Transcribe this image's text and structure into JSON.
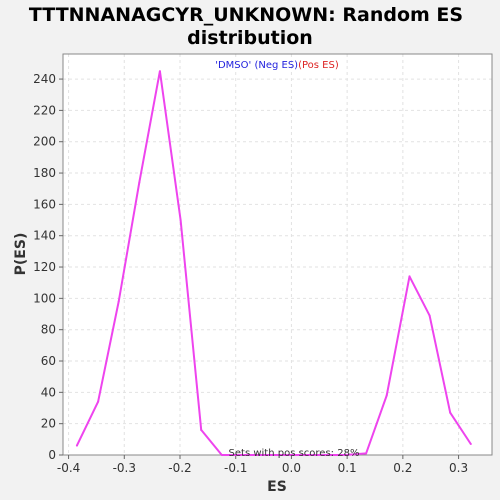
{
  "chart_data": {
    "type": "line",
    "title_line1": "TTTNNANAGCYR_UNKNOWN: Random ES",
    "title_line2": "distribution",
    "subtitle_neg": "'DMSO' (Neg ES)",
    "subtitle_pos": "(Pos ES)",
    "xlabel": "ES",
    "ylabel": "P(ES)",
    "annotation": "Sets with pos scores: 28%",
    "xlim": [
      -0.41,
      0.36
    ],
    "ylim": [
      0,
      256
    ],
    "x_ticks": [
      -0.4,
      -0.3,
      -0.2,
      -0.1,
      0.0,
      0.1,
      0.2,
      0.3
    ],
    "x_tick_labels": [
      "-0.4",
      "-0.3",
      "-0.2",
      "-0.1",
      "0.0",
      "0.1",
      "0.2",
      "0.3"
    ],
    "y_ticks": [
      0,
      20,
      40,
      60,
      80,
      100,
      120,
      140,
      160,
      180,
      200,
      220,
      240
    ],
    "y_tick_labels": [
      "0",
      "20",
      "40",
      "60",
      "80",
      "100",
      "120",
      "140",
      "160",
      "180",
      "200",
      "220",
      "240"
    ],
    "grid": true,
    "series": [
      {
        "color": "#ee44ee",
        "x": [
          -0.385,
          -0.347,
          -0.31,
          -0.273,
          -0.236,
          -0.199,
          -0.162,
          -0.125,
          -0.088,
          -0.051,
          -0.014,
          0.023,
          0.06,
          0.097,
          0.134,
          0.171,
          0.212,
          0.248,
          0.285,
          0.322
        ],
        "y": [
          6,
          34,
          98,
          174,
          245,
          150,
          16,
          0,
          0,
          0,
          0,
          0,
          0,
          0,
          1,
          38,
          114,
          89,
          27,
          7
        ]
      }
    ],
    "colors": {
      "background": "#f2f2f2",
      "plot_bg": "#ffffff",
      "grid": "#e2e2e2",
      "neg_label": "#2222dd",
      "pos_label": "#dd2222"
    }
  }
}
